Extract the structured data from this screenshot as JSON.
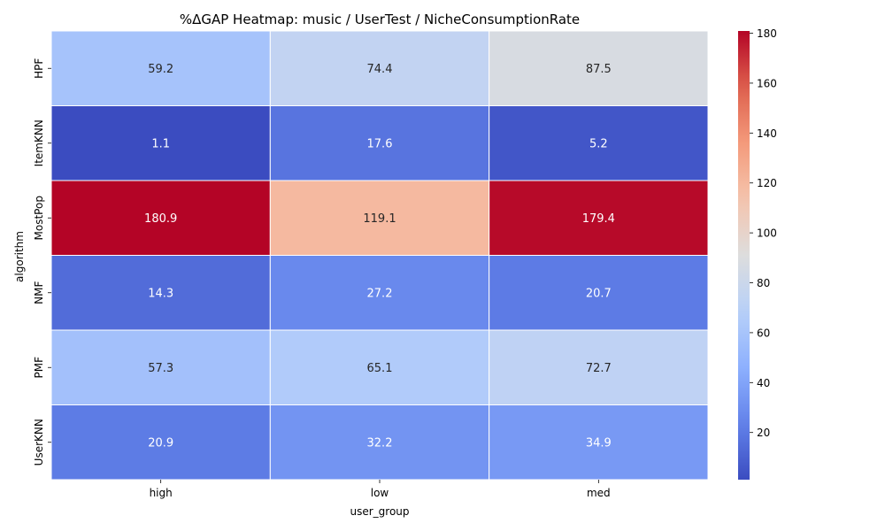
{
  "chart_data": {
    "type": "heatmap",
    "title": "%ΔGAP Heatmap: music / UserTest / NicheConsumptionRate",
    "xlabel": "user_group",
    "ylabel": "algorithm",
    "x_categories": [
      "high",
      "low",
      "med"
    ],
    "y_categories": [
      "HPF",
      "ItemKNN",
      "MostPop",
      "NMF",
      "PMF",
      "UserKNN"
    ],
    "values": [
      [
        59.2,
        74.4,
        87.5
      ],
      [
        1.1,
        17.6,
        5.2
      ],
      [
        180.9,
        119.1,
        179.4
      ],
      [
        14.3,
        27.2,
        20.7
      ],
      [
        57.3,
        65.1,
        72.7
      ],
      [
        20.9,
        32.2,
        34.9
      ]
    ],
    "value_labels": [
      [
        "59.2",
        "74.4",
        "87.5"
      ],
      [
        "1.1",
        "17.6",
        "5.2"
      ],
      [
        "180.9",
        "119.1",
        "179.4"
      ],
      [
        "14.3",
        "27.2",
        "20.7"
      ],
      [
        "57.3",
        "65.1",
        "72.7"
      ],
      [
        "20.9",
        "32.2",
        "34.9"
      ]
    ],
    "colormap": "coolwarm",
    "vmin": 1.1,
    "vmax": 180.9,
    "colorbar_ticks": [
      20,
      40,
      60,
      80,
      100,
      120,
      140,
      160,
      180
    ],
    "colorbar_tick_labels": [
      "20",
      "40",
      "60",
      "80",
      "100",
      "120",
      "140",
      "160",
      "180"
    ]
  }
}
